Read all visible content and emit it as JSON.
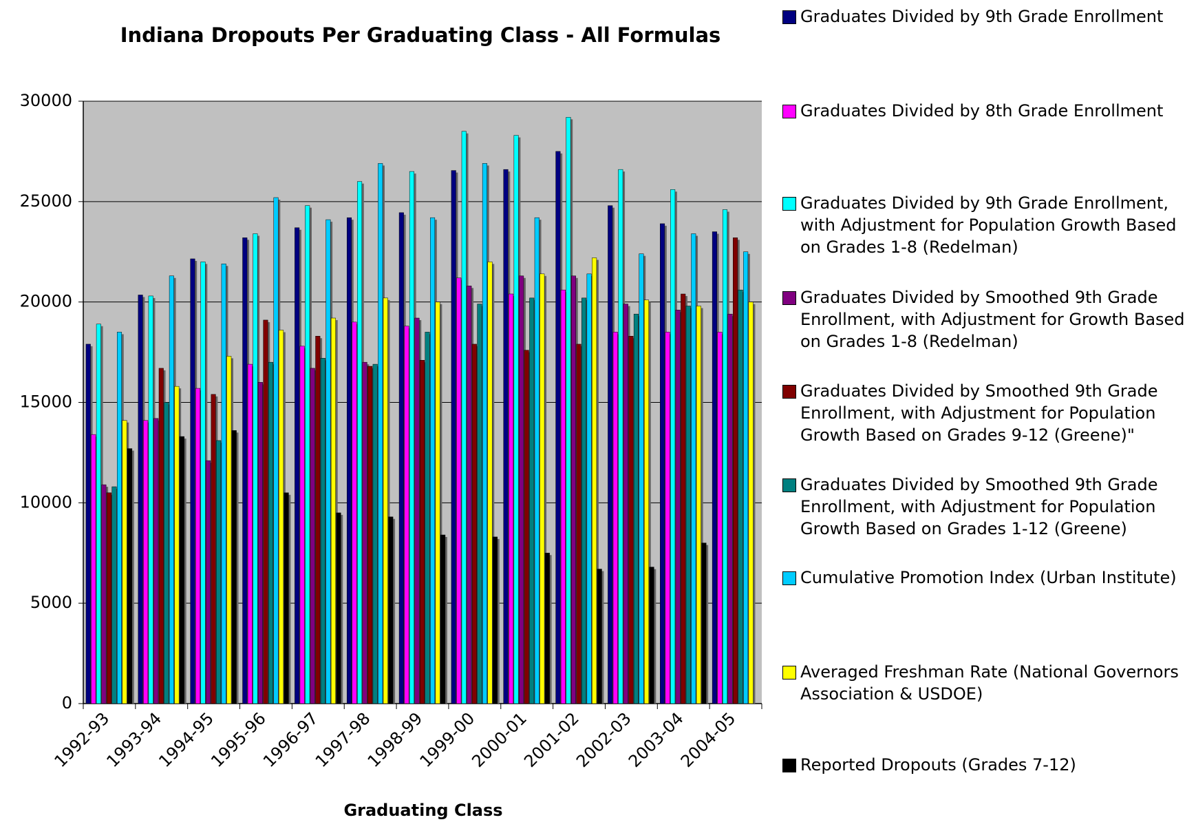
{
  "chart_data": {
    "type": "bar",
    "title": "Indiana Dropouts Per Graduating Class - All Formulas",
    "x_label": "Graduating Class",
    "categories": [
      "1992-93",
      "1993-94",
      "1994-95",
      "1995-96",
      "1996-97",
      "1997-98",
      "1998-99",
      "1999-00",
      "2000-01",
      "2001-02",
      "2002-03",
      "2003-04",
      "2004-05"
    ],
    "series": [
      {
        "name": "Graduates Divided by 9th Grade Enrollment",
        "color": "#000080",
        "values": [
          17900,
          20350,
          22150,
          23200,
          23700,
          24200,
          24450,
          26550,
          26600,
          27500,
          24800,
          23900,
          23500
        ]
      },
      {
        "name": "Graduates Divided by 8th Grade Enrollment",
        "color": "#FF00FF",
        "values": [
          13400,
          14100,
          15700,
          16900,
          17800,
          19000,
          18800,
          21200,
          20400,
          20600,
          18500,
          18500,
          18500
        ]
      },
      {
        "name": "Graduates Divided by 9th Grade Enrollment, with Adjustment for Population Growth Based on Grades 1-8 (Redelman)",
        "color": "#00FFFF",
        "values": [
          18900,
          20300,
          22000,
          23400,
          24800,
          26000,
          26500,
          28500,
          28300,
          29200,
          26600,
          25600,
          24600
        ]
      },
      {
        "name": "Graduates Divided by Smoothed 9th Grade Enrollment, with Adjustment for Growth Based on Grades 1-8 (Redelman)",
        "color": "#800080",
        "values": [
          10900,
          14200,
          12100,
          16000,
          16700,
          17000,
          19200,
          20800,
          21300,
          21300,
          19900,
          19600,
          19400
        ]
      },
      {
        "name": "Graduates Divided by Smoothed 9th Grade Enrollment, with Adjustment for Population Growth Based on Grades 9-12 (Greene)\"",
        "color": "#800000",
        "values": [
          10500,
          16700,
          15400,
          19100,
          18300,
          16800,
          17100,
          17900,
          17600,
          17900,
          18300,
          20400,
          23200
        ]
      },
      {
        "name": "Graduates Divided by Smoothed 9th Grade Enrollment, with Adjustment for Population Growth Based on Grades 1-12 (Greene)",
        "color": "#008080",
        "values": [
          10800,
          15000,
          13100,
          17000,
          17200,
          16900,
          18500,
          19900,
          20200,
          20200,
          19400,
          19800,
          20600
        ]
      },
      {
        "name": "Cumulative Promotion Index (Urban Institute)",
        "color": "#00CCFF",
        "values": [
          18500,
          21300,
          21900,
          25200,
          24100,
          26900,
          24200,
          26900,
          24200,
          21400,
          22400,
          23400,
          22500
        ]
      },
      {
        "name": "Averaged Freshman Rate (National Governors Association & USDOE)",
        "color": "#FFFF00",
        "values": [
          14100,
          15800,
          17300,
          18600,
          19200,
          20200,
          20000,
          22000,
          21400,
          22200,
          20100,
          19800,
          20000
        ]
      },
      {
        "name": "Reported Dropouts (Grades 7-12)",
        "color": "#000000",
        "values": [
          12700,
          13300,
          13600,
          10500,
          9500,
          9300,
          8400,
          8300,
          7500,
          6700,
          6800,
          8000,
          null
        ]
      }
    ],
    "ylim": [
      0,
      30000
    ],
    "yticks": [
      0,
      5000,
      10000,
      15000,
      20000,
      25000,
      30000
    ],
    "grid": true,
    "legend": "right"
  }
}
